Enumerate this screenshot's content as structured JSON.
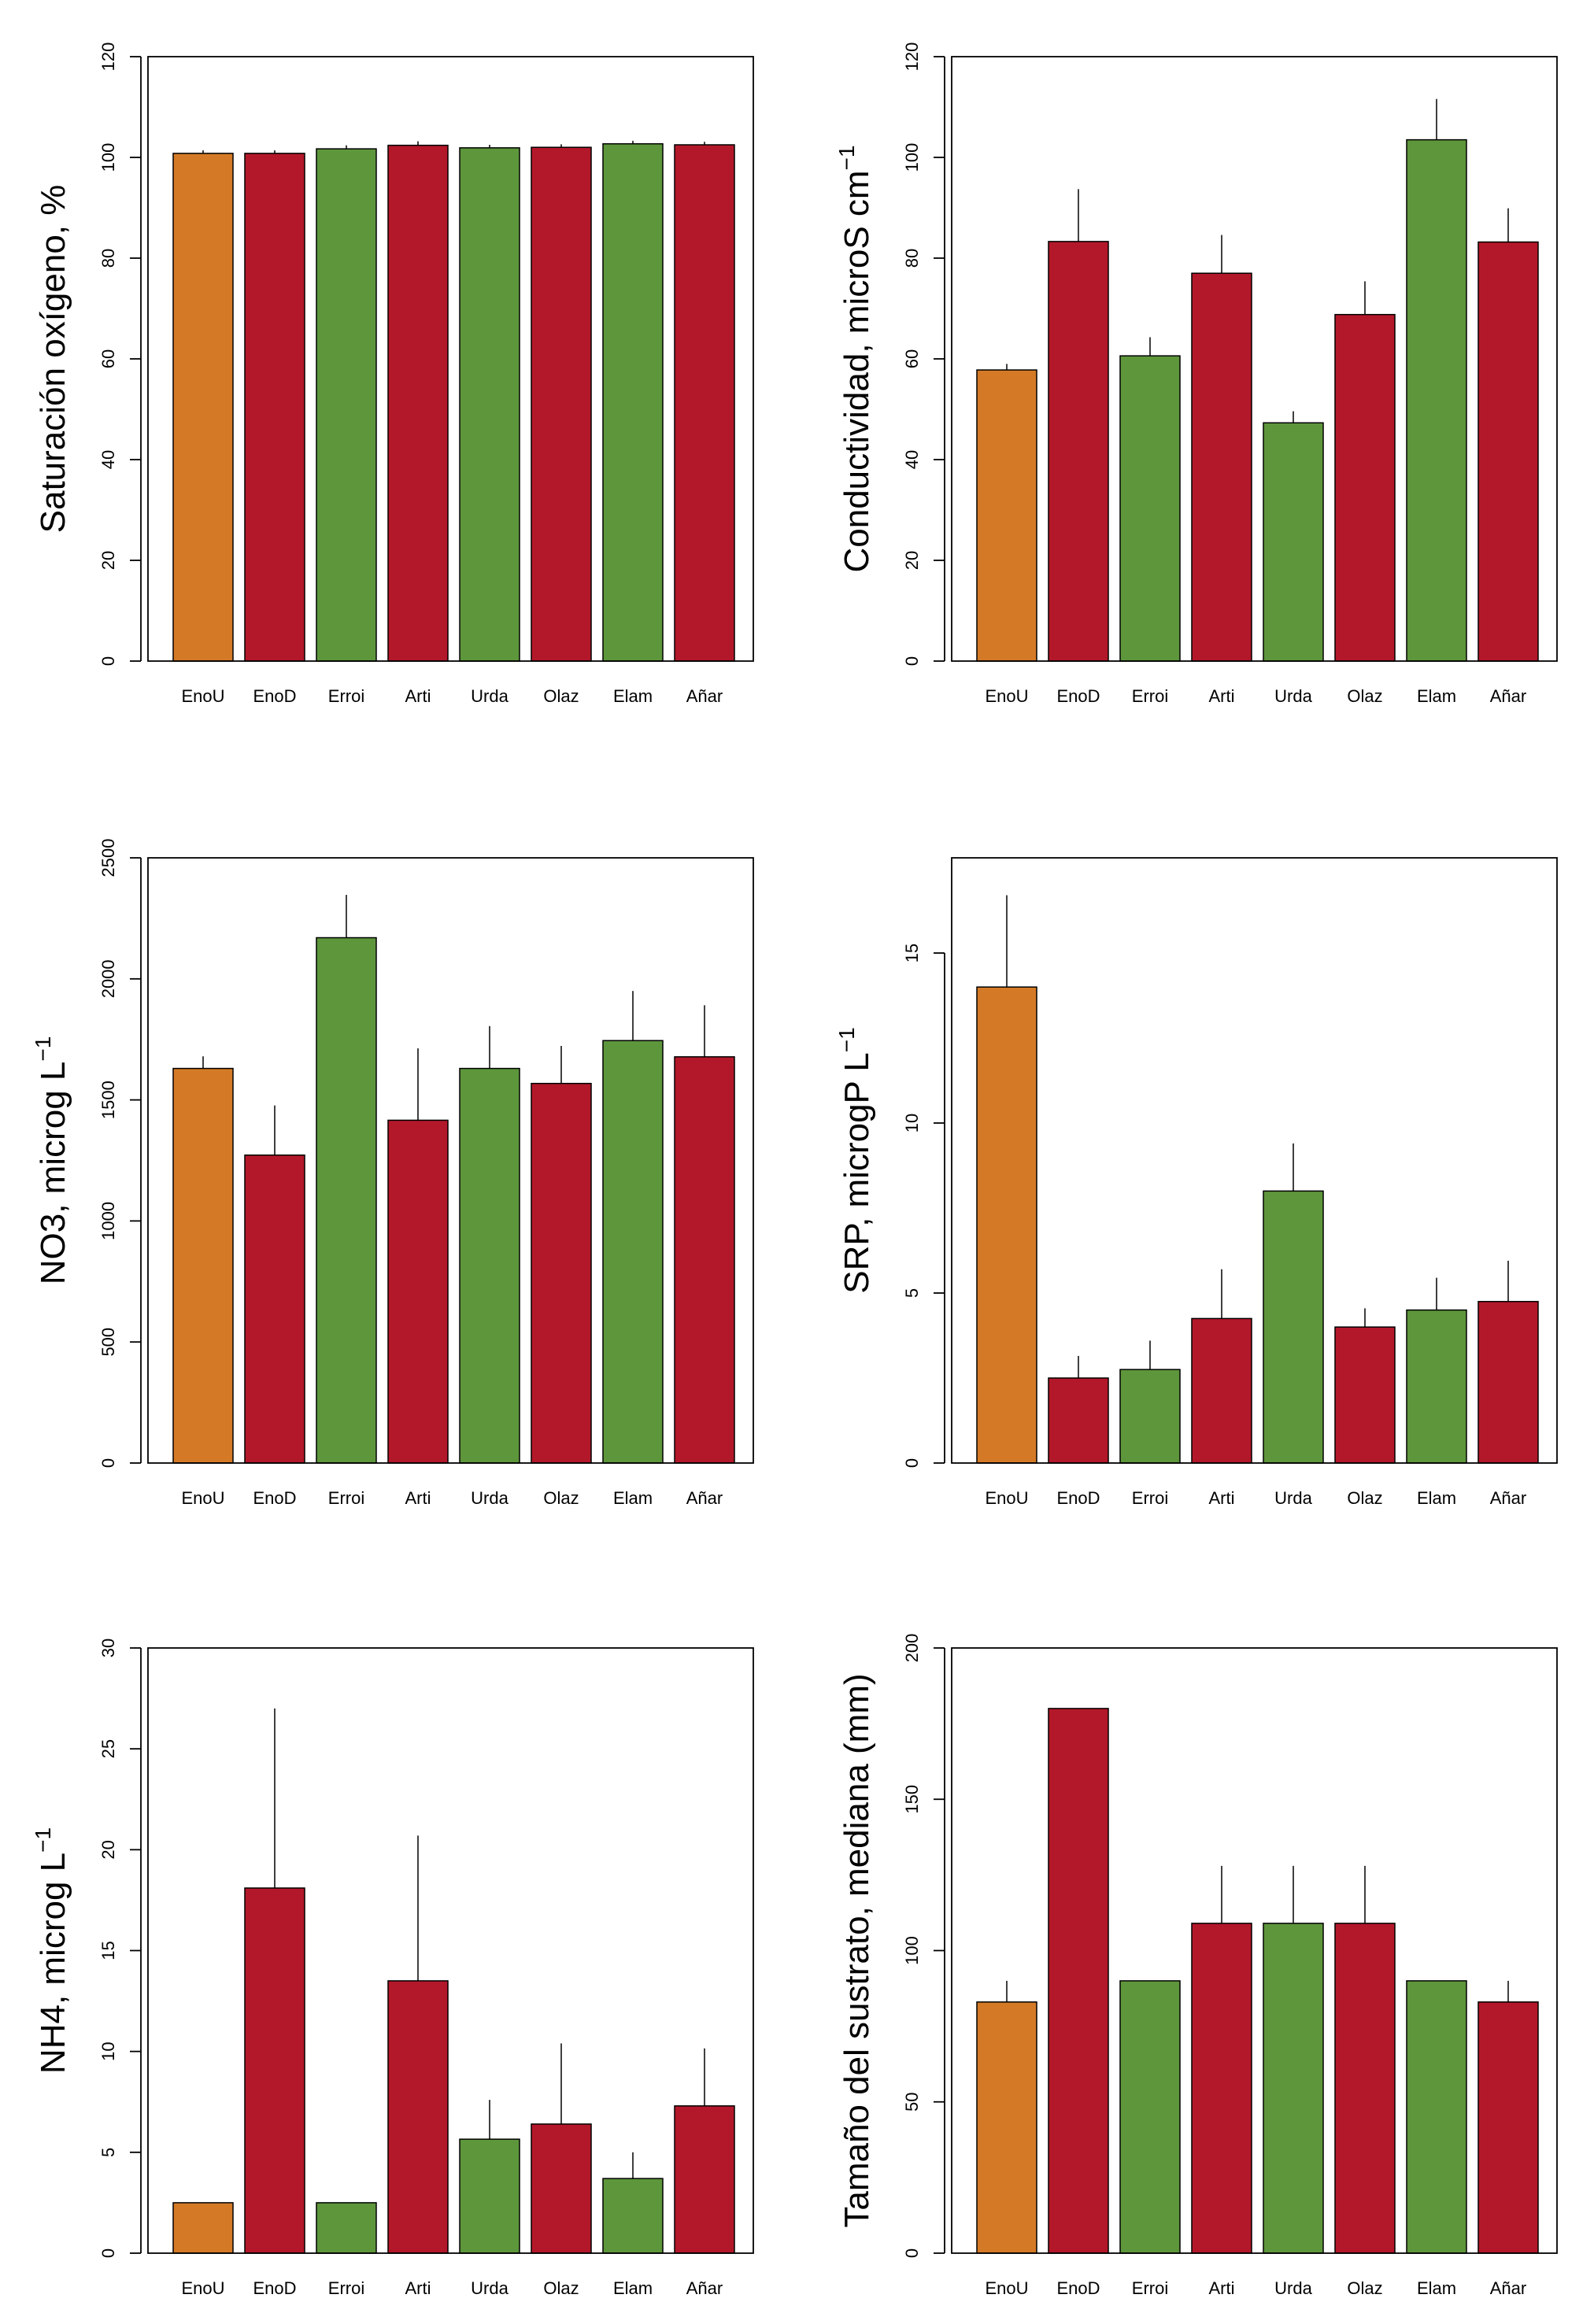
{
  "colors": {
    "orange": "#D47A27",
    "red": "#B3182A",
    "green": "#5E963C"
  },
  "chart_data": [
    {
      "type": "bar",
      "ylabel": "Saturación oxígeno, %",
      "ylabel_sup": "",
      "ylim": [
        0,
        120
      ],
      "yticks": [
        0,
        20,
        40,
        60,
        80,
        100,
        120
      ],
      "categories": [
        "EnoU",
        "EnoD",
        "Erroi",
        "Arti",
        "Urda",
        "Olaz",
        "Elam",
        "Añar"
      ],
      "values": [
        100.8,
        100.8,
        101.7,
        102.4,
        101.9,
        102.0,
        102.7,
        102.5
      ],
      "errors": [
        0.6,
        0.6,
        0.7,
        0.8,
        0.6,
        0.6,
        0.6,
        0.6
      ],
      "bar_colors": [
        "orange",
        "red",
        "green",
        "red",
        "green",
        "red",
        "green",
        "red"
      ]
    },
    {
      "type": "bar",
      "ylabel": "Conductividad, microS cm",
      "ylabel_sup": "−1",
      "ylim": [
        0,
        120
      ],
      "yticks": [
        0,
        20,
        40,
        60,
        80,
        100,
        120
      ],
      "categories": [
        "EnoU",
        "EnoD",
        "Erroi",
        "Arti",
        "Urda",
        "Olaz",
        "Elam",
        "Añar"
      ],
      "values": [
        57.8,
        83.3,
        60.6,
        77.0,
        47.3,
        68.8,
        103.5,
        83.2
      ],
      "errors": [
        1.2,
        10.4,
        3.7,
        7.6,
        2.3,
        6.6,
        8.1,
        6.7
      ],
      "bar_colors": [
        "orange",
        "red",
        "green",
        "red",
        "green",
        "red",
        "green",
        "red"
      ]
    },
    {
      "type": "bar",
      "ylabel": "NO3, microg L",
      "ylabel_sup": "−1",
      "ylim": [
        0,
        2500
      ],
      "yticks": [
        0,
        500,
        1000,
        1500,
        2000,
        2500
      ],
      "categories": [
        "EnoU",
        "EnoD",
        "Erroi",
        "Arti",
        "Urda",
        "Olaz",
        "Elam",
        "Añar"
      ],
      "values": [
        1630,
        1272,
        2170,
        1416,
        1630,
        1568,
        1745,
        1678
      ],
      "errors": [
        50,
        205,
        177,
        297,
        175,
        155,
        205,
        213
      ],
      "bar_colors": [
        "orange",
        "red",
        "green",
        "red",
        "green",
        "red",
        "green",
        "red"
      ]
    },
    {
      "type": "bar",
      "ylabel": "SRP, microgP L",
      "ylabel_sup": "−1",
      "ylim": [
        0,
        17.8
      ],
      "yticks": [
        0,
        5,
        10,
        15
      ],
      "categories": [
        "EnoU",
        "EnoD",
        "Erroi",
        "Arti",
        "Urda",
        "Olaz",
        "Elam",
        "Añar"
      ],
      "values": [
        14.0,
        2.5,
        2.75,
        4.25,
        8.0,
        4.0,
        4.5,
        4.75
      ],
      "errors": [
        2.7,
        0.65,
        0.85,
        1.45,
        1.4,
        0.55,
        0.95,
        1.2
      ],
      "bar_colors": [
        "orange",
        "red",
        "green",
        "red",
        "green",
        "red",
        "green",
        "red"
      ]
    },
    {
      "type": "bar",
      "ylabel": "NH4, microg L",
      "ylabel_sup": "−1",
      "ylim": [
        0,
        30
      ],
      "yticks": [
        0,
        5,
        10,
        15,
        20,
        25,
        30
      ],
      "categories": [
        "EnoU",
        "EnoD",
        "Erroi",
        "Arti",
        "Urda",
        "Olaz",
        "Elam",
        "Añar"
      ],
      "values": [
        2.5,
        18.1,
        2.5,
        13.5,
        5.65,
        6.4,
        3.7,
        7.3
      ],
      "errors": [
        0,
        8.9,
        0,
        7.2,
        1.95,
        4.0,
        1.3,
        2.85
      ],
      "bar_colors": [
        "orange",
        "red",
        "green",
        "red",
        "green",
        "red",
        "green",
        "red"
      ]
    },
    {
      "type": "bar",
      "ylabel": "Tamaño del sustrato, mediana (mm)",
      "ylabel_sup": "",
      "ylim": [
        0,
        200
      ],
      "yticks": [
        0,
        50,
        100,
        150,
        200
      ],
      "categories": [
        "EnoU",
        "EnoD",
        "Erroi",
        "Arti",
        "Urda",
        "Olaz",
        "Elam",
        "Añar"
      ],
      "values": [
        83,
        180,
        90,
        109,
        109,
        109,
        90,
        83
      ],
      "errors": [
        7,
        0,
        0,
        19,
        19,
        19,
        0,
        7
      ],
      "bar_colors": [
        "orange",
        "red",
        "green",
        "red",
        "green",
        "red",
        "green",
        "red"
      ]
    }
  ]
}
